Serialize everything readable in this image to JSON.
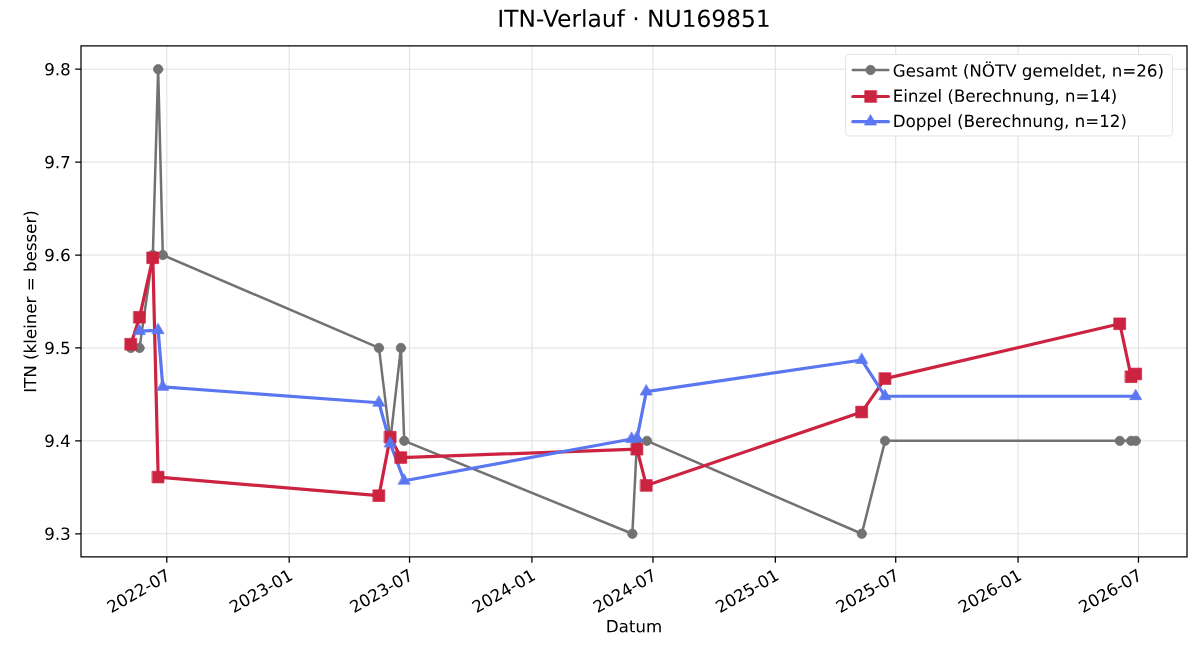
{
  "chart_data": {
    "type": "line",
    "title": "ITN-Verlauf · NU169851",
    "xlabel": "Datum",
    "ylabel": "ITN  (kleiner = besser)",
    "xlim": [
      "2022-02-22",
      "2026-09-12"
    ],
    "ylim": [
      9.275,
      9.825
    ],
    "xticks": [
      "2022-07",
      "2023-01",
      "2023-07",
      "2024-01",
      "2024-07",
      "2025-01",
      "2025-07",
      "2026-01",
      "2026-07"
    ],
    "yticks": [
      9.3,
      9.4,
      9.5,
      9.6,
      9.7,
      9.8
    ],
    "grid": true,
    "legend": "top right",
    "series": [
      {
        "name": "Gesamt (NÖTV gemeldet, n=26)",
        "color": "#727272",
        "marker": "circle",
        "x": [
          "2022-05-08",
          "2022-05-21",
          "2022-06-10",
          "2022-06-18",
          "2022-06-25",
          "2023-05-16",
          "2023-06-02",
          "2023-06-18",
          "2023-06-23",
          "2024-05-31",
          "2024-06-07",
          "2024-06-22",
          "2025-05-11",
          "2025-06-15",
          "2026-06-03",
          "2026-06-20",
          "2026-06-27"
        ],
        "values": [
          9.5,
          9.5,
          9.6,
          9.8,
          9.6,
          9.5,
          9.4,
          9.5,
          9.4,
          9.3,
          9.4,
          9.4,
          9.3,
          9.4,
          9.4,
          9.4,
          9.4
        ]
      },
      {
        "name": "Einzel (Berechnung, n=14)",
        "color": "#cc2340",
        "marker": "square",
        "x": [
          "2022-05-08",
          "2022-05-21",
          "2022-06-10",
          "2022-06-18",
          "2023-05-16",
          "2023-06-02",
          "2023-06-18",
          "2024-06-07",
          "2024-06-21",
          "2025-05-11",
          "2025-06-15",
          "2026-06-03",
          "2026-06-20",
          "2026-06-27"
        ],
        "values": [
          9.504,
          9.533,
          9.597,
          9.361,
          9.341,
          9.404,
          9.382,
          9.391,
          9.352,
          9.431,
          9.467,
          9.526,
          9.469,
          9.472
        ]
      },
      {
        "name": "Doppel (Berechnung, n=12)",
        "color": "#5a76f0",
        "marker": "triangle",
        "x": [
          "2022-05-21",
          "2022-06-18",
          "2022-06-25",
          "2023-05-16",
          "2023-06-02",
          "2023-06-23",
          "2024-05-30",
          "2024-06-07",
          "2024-06-21",
          "2025-05-11",
          "2025-06-15",
          "2026-06-27"
        ],
        "values": [
          9.518,
          9.519,
          9.458,
          9.441,
          9.397,
          9.357,
          9.402,
          9.403,
          9.453,
          9.487,
          9.448,
          9.448
        ]
      }
    ]
  }
}
